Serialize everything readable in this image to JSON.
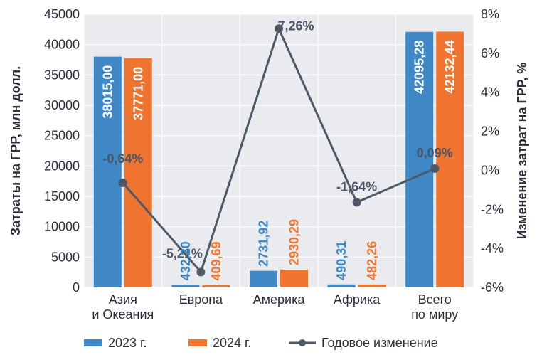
{
  "chart_data": {
    "type": "bar",
    "categories": [
      [
        "Азия",
        "и Океания"
      ],
      [
        "Европа"
      ],
      [
        "Америка"
      ],
      [
        "Африка"
      ],
      [
        "Всего",
        "по миру"
      ]
    ],
    "series": [
      {
        "name": "2023 г.",
        "values": [
          38015.0,
          432.2,
          2731.92,
          490.31,
          42095.28
        ],
        "labels": [
          "38015,00",
          "432,20",
          "2731,92",
          "490,31",
          "42095,28"
        ],
        "color": "#3f88c5"
      },
      {
        "name": "2024 г.",
        "values": [
          37771.0,
          409.69,
          2930.29,
          482.26,
          42132.44
        ],
        "labels": [
          "37771,00",
          "409,69",
          "2930,29",
          "482,26",
          "42132,44"
        ],
        "color": "#ee7430"
      }
    ],
    "line": {
      "name": "Годовое изменение",
      "values": [
        -0.64,
        -5.21,
        7.26,
        -1.64,
        0.09
      ],
      "labels": [
        "-0,64%",
        "-5,21%",
        "7,26%",
        "-1,64%",
        "0,09%"
      ],
      "color": "#4d5869"
    },
    "ylabel": "Затраты на ГРР, млн долл.",
    "y2label": "Изменение затрат на ГРР, %",
    "ylim": [
      0,
      45000
    ],
    "y2lim": [
      -6,
      8
    ],
    "yticks": [
      "0",
      "5000",
      "10000",
      "15000",
      "20000",
      "25000",
      "30000",
      "35000",
      "40000",
      "45000"
    ],
    "ytick_values": [
      0,
      5000,
      10000,
      15000,
      20000,
      25000,
      30000,
      35000,
      40000,
      45000
    ],
    "y2ticks": [
      "-6%",
      "-4%",
      "-2%",
      "0%",
      "2%",
      "4%",
      "6%",
      "8%"
    ],
    "y2tick_values": [
      -6,
      -4,
      -2,
      0,
      2,
      4,
      6,
      8
    ],
    "legend_position": "bottom",
    "legend": [
      "2023 г.",
      "2024 г.",
      "Годовое изменение"
    ],
    "plot_background": "#e9ebee"
  }
}
